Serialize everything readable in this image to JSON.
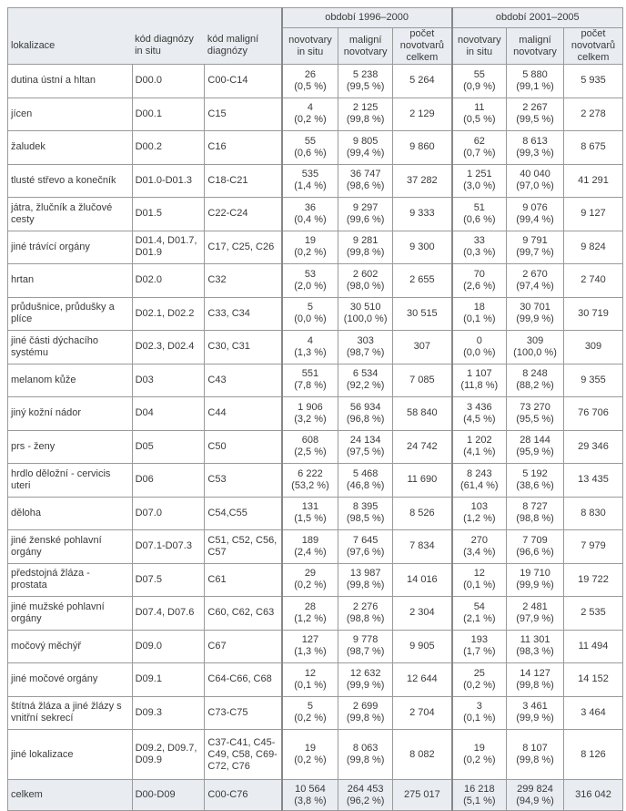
{
  "headers": {
    "period1": "období 1996–2000",
    "period2": "období 2001–2005",
    "lokalizace": "lokalizace",
    "kod_in_situ": "kód diagnózy in situ",
    "kod_maligni": "kód maligní diagnózy",
    "in_situ": "novotvary in situ",
    "maligni": "maligní novotvary",
    "celkem": "počet novotvarů celkem"
  },
  "rows": [
    {
      "lok": "dutina ústní a hltan",
      "kis": "D00.0",
      "kmal": "C00-C14",
      "a1": "26",
      "a1p": "(0,5 %)",
      "b1": "5 238",
      "b1p": "(99,5 %)",
      "c1": "5 264",
      "a2": "55",
      "a2p": "(0,9 %)",
      "b2": "5 880",
      "b2p": "(99,1 %)",
      "c2": "5 935"
    },
    {
      "lok": "jícen",
      "kis": "D00.1",
      "kmal": "C15",
      "a1": "4",
      "a1p": "(0,2 %)",
      "b1": "2 125",
      "b1p": "(99,8 %)",
      "c1": "2 129",
      "a2": "11",
      "a2p": "(0,5 %)",
      "b2": "2 267",
      "b2p": "(99,5 %)",
      "c2": "2 278"
    },
    {
      "lok": "žaludek",
      "kis": "D00.2",
      "kmal": "C16",
      "a1": "55",
      "a1p": "(0,6 %)",
      "b1": "9 805",
      "b1p": "(99,4 %)",
      "c1": "9 860",
      "a2": "62",
      "a2p": "(0,7 %)",
      "b2": "8 613",
      "b2p": "(99,3 %)",
      "c2": "8 675"
    },
    {
      "lok": "tlusté střevo a konečník",
      "kis": "D01.0-D01.3",
      "kmal": "C18-C21",
      "a1": "535",
      "a1p": "(1,4 %)",
      "b1": "36 747",
      "b1p": "(98,6 %)",
      "c1": "37 282",
      "a2": "1 251",
      "a2p": "(3,0 %)",
      "b2": "40 040",
      "b2p": "(97,0 %)",
      "c2": "41 291"
    },
    {
      "lok": "játra, žlučník a žlučové cesty",
      "kis": "D01.5",
      "kmal": "C22-C24",
      "a1": "36",
      "a1p": "(0,4 %)",
      "b1": "9 297",
      "b1p": "(99,6 %)",
      "c1": "9 333",
      "a2": "51",
      "a2p": "(0,6 %)",
      "b2": "9 076",
      "b2p": "(99,4 %)",
      "c2": "9 127"
    },
    {
      "lok": "jiné trávící orgány",
      "kis": "D01.4, D01.7, D01.9",
      "kmal": "C17, C25, C26",
      "a1": "19",
      "a1p": "(0,2 %)",
      "b1": "9 281",
      "b1p": "(99,8 %)",
      "c1": "9 300",
      "a2": "33",
      "a2p": "(0,3 %)",
      "b2": "9 791",
      "b2p": "(99,7 %)",
      "c2": "9 824"
    },
    {
      "lok": "hrtan",
      "kis": "D02.0",
      "kmal": "C32",
      "a1": "53",
      "a1p": "(2,0 %)",
      "b1": "2 602",
      "b1p": "(98,0 %)",
      "c1": "2 655",
      "a2": "70",
      "a2p": "(2,6 %)",
      "b2": "2 670",
      "b2p": "(97,4 %)",
      "c2": "2 740"
    },
    {
      "lok": "průdušnice, průdušky a plíce",
      "kis": "D02.1, D02.2",
      "kmal": "C33, C34",
      "a1": "5",
      "a1p": "(0,0 %)",
      "b1": "30 510",
      "b1p": "(100,0 %)",
      "c1": "30 515",
      "a2": "18",
      "a2p": "(0,1 %)",
      "b2": "30 701",
      "b2p": "(99,9 %)",
      "c2": "30 719"
    },
    {
      "lok": "jiné části dýchacího systému",
      "kis": "D02.3, D02.4",
      "kmal": "C30, C31",
      "a1": "4",
      "a1p": "(1,3 %)",
      "b1": "303",
      "b1p": "(98,7 %)",
      "c1": "307",
      "a2": "0",
      "a2p": "(0,0 %)",
      "b2": "309",
      "b2p": "(100,0 %)",
      "c2": "309"
    },
    {
      "lok": "melanom kůže",
      "kis": "D03",
      "kmal": "C43",
      "a1": "551",
      "a1p": "(7,8 %)",
      "b1": "6 534",
      "b1p": "(92,2 %)",
      "c1": "7 085",
      "a2": "1 107",
      "a2p": "(11,8 %)",
      "b2": "8 248",
      "b2p": "(88,2 %)",
      "c2": "9 355"
    },
    {
      "lok": "jiný kožní nádor",
      "kis": "D04",
      "kmal": "C44",
      "a1": "1 906",
      "a1p": "(3,2 %)",
      "b1": "56 934",
      "b1p": "(96,8 %)",
      "c1": "58 840",
      "a2": "3 436",
      "a2p": "(4,5 %)",
      "b2": "73 270",
      "b2p": "(95,5 %)",
      "c2": "76 706"
    },
    {
      "lok": "prs - ženy",
      "kis": "D05",
      "kmal": "C50",
      "a1": "608",
      "a1p": "(2,5 %)",
      "b1": "24 134",
      "b1p": "(97,5 %)",
      "c1": "24 742",
      "a2": "1 202",
      "a2p": "(4,1 %)",
      "b2": "28 144",
      "b2p": "(95,9 %)",
      "c2": "29 346"
    },
    {
      "lok": "hrdlo děložní - cervicis uteri",
      "kis": "D06",
      "kmal": "C53",
      "a1": "6 222",
      "a1p": "(53,2 %)",
      "b1": "5 468",
      "b1p": "(46,8 %)",
      "c1": "11 690",
      "a2": "8 243",
      "a2p": "(61,4 %)",
      "b2": "5 192",
      "b2p": "(38,6 %)",
      "c2": "13 435"
    },
    {
      "lok": "děloha",
      "kis": "D07.0",
      "kmal": "C54,C55",
      "a1": "131",
      "a1p": "(1,5 %)",
      "b1": "8 395",
      "b1p": "(98,5 %)",
      "c1": "8 526",
      "a2": "103",
      "a2p": "(1,2 %)",
      "b2": "8 727",
      "b2p": "(98,8 %)",
      "c2": "8 830"
    },
    {
      "lok": "jiné ženské pohlavní orgány",
      "kis": "D07.1-D07.3",
      "kmal": "C51, C52, C56, C57",
      "a1": "189",
      "a1p": "(2,4 %)",
      "b1": "7 645",
      "b1p": "(97,6 %)",
      "c1": "7 834",
      "a2": "270",
      "a2p": "(3,4 %)",
      "b2": "7 709",
      "b2p": "(96,6 %)",
      "c2": "7 979"
    },
    {
      "lok": "předstojná žláza - prostata",
      "kis": "D07.5",
      "kmal": "C61",
      "a1": "29",
      "a1p": "(0,2 %)",
      "b1": "13 987",
      "b1p": "(99,8 %)",
      "c1": "14 016",
      "a2": "12",
      "a2p": "(0,1 %)",
      "b2": "19 710",
      "b2p": "(99,9 %)",
      "c2": "19 722"
    },
    {
      "lok": "jiné mužské pohlavní orgány",
      "kis": "D07.4, D07.6",
      "kmal": "C60, C62, C63",
      "a1": "28",
      "a1p": "(1,2 %)",
      "b1": "2 276",
      "b1p": "(98,8 %)",
      "c1": "2 304",
      "a2": "54",
      "a2p": "(2,1 %)",
      "b2": "2 481",
      "b2p": "(97,9 %)",
      "c2": "2 535"
    },
    {
      "lok": "močový měchýř",
      "kis": "D09.0",
      "kmal": "C67",
      "a1": "127",
      "a1p": "(1,3 %)",
      "b1": "9 778",
      "b1p": "(98,7 %)",
      "c1": "9 905",
      "a2": "193",
      "a2p": "(1,7 %)",
      "b2": "11 301",
      "b2p": "(98,3 %)",
      "c2": "11 494"
    },
    {
      "lok": "jiné močové orgány",
      "kis": "D09.1",
      "kmal": "C64-C66, C68",
      "a1": "12",
      "a1p": "(0,1 %)",
      "b1": "12 632",
      "b1p": "(99,9 %)",
      "c1": "12 644",
      "a2": "25",
      "a2p": "(0,2 %)",
      "b2": "14 127",
      "b2p": "(99,8 %)",
      "c2": "14 152"
    },
    {
      "lok": "štítná žláza a jiné žlázy s vnitřní sekrecí",
      "kis": "D09.3",
      "kmal": "C73-C75",
      "a1": "5",
      "a1p": "(0,2 %)",
      "b1": "2 699",
      "b1p": "(99,8 %)",
      "c1": "2 704",
      "a2": "3",
      "a2p": "(0,1 %)",
      "b2": "3 461",
      "b2p": "(99,9 %)",
      "c2": "3 464"
    },
    {
      "lok": "jiné lokalizace",
      "kis": "D09.2, D09.7, D09.9",
      "kmal": "C37-C41, C45-C49, C58, C69-C72, C76",
      "a1": "19",
      "a1p": "(0,2 %)",
      "b1": "8 063",
      "b1p": "(99,8 %)",
      "c1": "8 082",
      "a2": "19",
      "a2p": "(0,2 %)",
      "b2": "8 107",
      "b2p": "(99,8 %)",
      "c2": "8 126",
      "tall": true
    },
    {
      "lok": "celkem",
      "kis": "D00-D09",
      "kmal": "C00-C76",
      "a1": "10 564",
      "a1p": "(3,8 %)",
      "b1": "264 453",
      "b1p": "(96,2 %)",
      "c1": "275 017",
      "a2": "16 218",
      "a2p": "(5,1 %)",
      "b2": "299 824",
      "b2p": "(94,9 %)",
      "c2": "316 042",
      "total": true
    }
  ]
}
